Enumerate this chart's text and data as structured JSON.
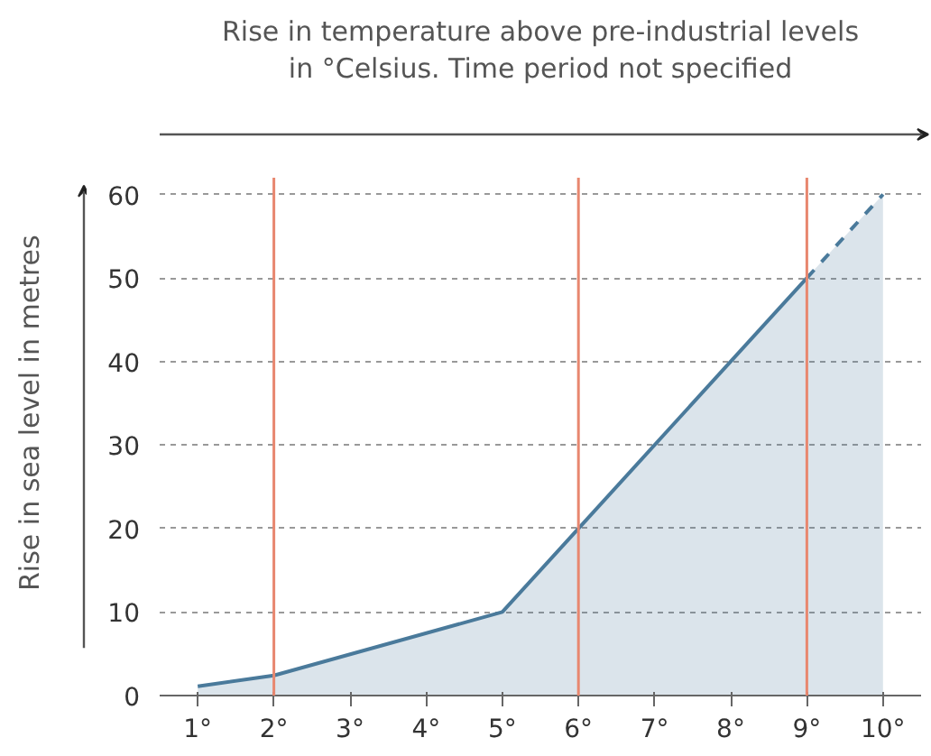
{
  "chart_data": {
    "type": "area",
    "xlabel": "Rise in temperature above pre-industrial levels\nin °Celsius. Time period not specified",
    "ylabel": "Rise in sea level in metres",
    "series": [
      {
        "color": "#4a7a9b",
        "x": [
          1,
          2,
          5,
          6,
          9
        ],
        "values": [
          1.1,
          2.4,
          10,
          20,
          50
        ],
        "line_style": "solid"
      },
      {
        "color": "#4a7a9b",
        "x": [
          9,
          10
        ],
        "values": [
          50,
          60
        ],
        "line_style": "dashed"
      }
    ],
    "xlim": [
      0.5,
      10.5
    ],
    "ylim": [
      0,
      62
    ],
    "xticks": [
      {
        "value": 1,
        "label": "1°"
      },
      {
        "value": 2,
        "label": "2°"
      },
      {
        "value": 3,
        "label": "3°"
      },
      {
        "value": 4,
        "label": "4°"
      },
      {
        "value": 5,
        "label": "5°"
      },
      {
        "value": 6,
        "label": "6°"
      },
      {
        "value": 7,
        "label": "7°"
      },
      {
        "value": 8,
        "label": "8°"
      },
      {
        "value": 9,
        "label": "9°"
      },
      {
        "value": 10,
        "label": "10°"
      }
    ],
    "yticks": [
      0,
      10,
      20,
      30,
      40,
      50,
      60
    ],
    "ref_lines": [
      {
        "axis": "x",
        "value": 2,
        "color": "#e8876f"
      },
      {
        "axis": "x",
        "value": 6,
        "color": "#e8876f"
      },
      {
        "axis": "x",
        "value": 9,
        "color": "#e8876f"
      }
    ],
    "grid": "y"
  }
}
